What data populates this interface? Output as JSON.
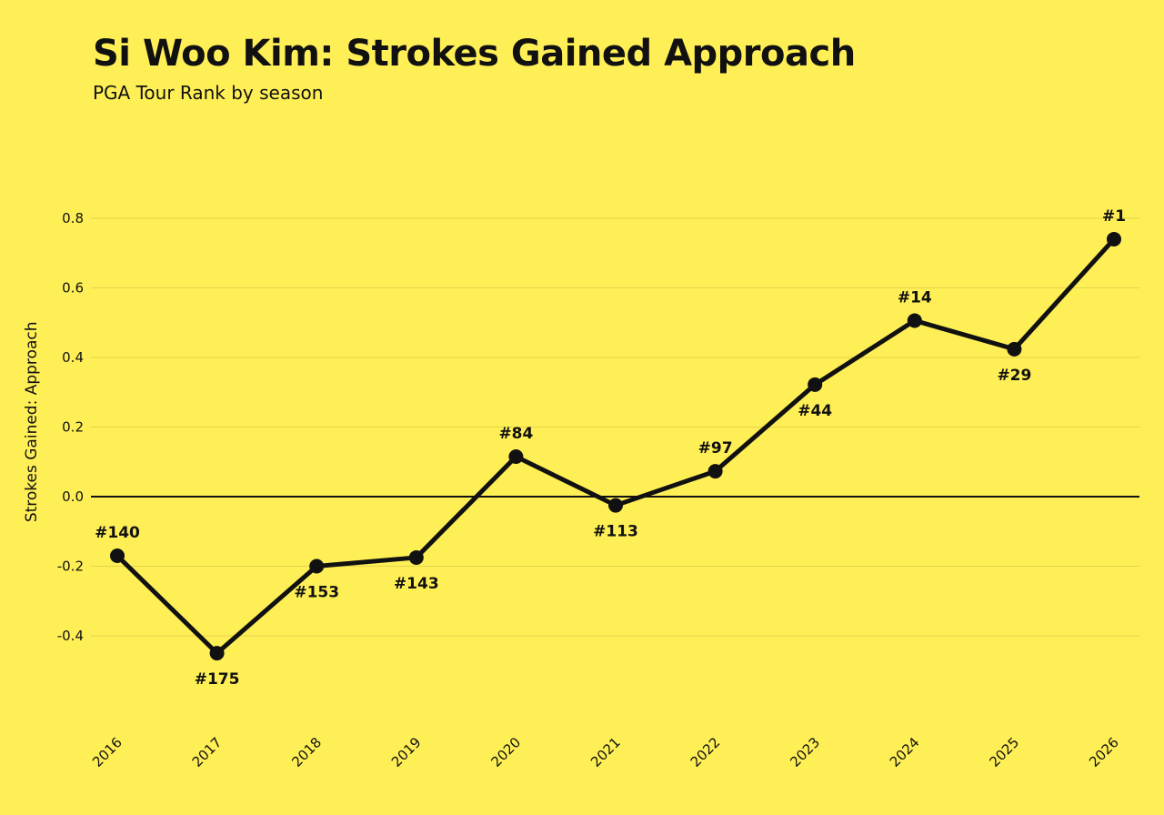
{
  "header": {
    "title": "Si Woo Kim: Strokes Gained Approach",
    "subtitle": "PGA Tour Rank by season"
  },
  "colors": {
    "background": "#FFEF56",
    "line": "#111111",
    "grid": "#E3D24A"
  },
  "chart_data": {
    "type": "line",
    "title": "Si Woo Kim: Strokes Gained Approach",
    "subtitle": "PGA Tour Rank by season",
    "xlabel": "",
    "ylabel": "Strokes Gained: Approach",
    "ylim": [
      -0.6,
      0.8
    ],
    "yticks": [
      0.8,
      0.6,
      0.4,
      0.2,
      0.0,
      -0.2,
      -0.4
    ],
    "ytick_labels": [
      "0.8",
      "0.6",
      "0.4",
      "0.2",
      "0.0",
      "-0.2",
      "-0.4"
    ],
    "grid": true,
    "categories": [
      "2016",
      "2017",
      "2018",
      "2019",
      "2020",
      "2021",
      "2022",
      "2023",
      "2024",
      "2025",
      "2026"
    ],
    "series": [
      {
        "values": [
          -0.17,
          -0.45,
          -0.2,
          -0.175,
          0.115,
          -0.025,
          0.073,
          0.322,
          0.506,
          0.424,
          0.74
        ],
        "labels": [
          "#140",
          "#175",
          "#153",
          "#143",
          "#84",
          "#113",
          "#97",
          "#44",
          "#14",
          "#29",
          "#1"
        ],
        "label_positions": [
          "above",
          "below",
          "below",
          "below",
          "above",
          "below",
          "above",
          "below",
          "above",
          "below",
          "above"
        ]
      }
    ]
  }
}
